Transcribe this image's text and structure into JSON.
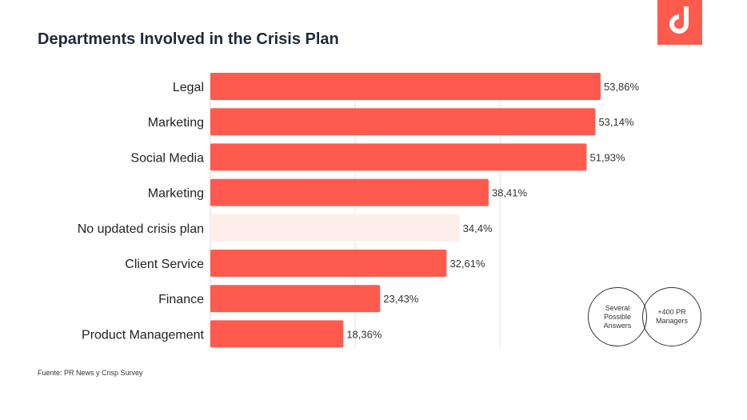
{
  "title": "Departments Involved in the Crisis Plan",
  "source": "Fuente: PR News y Crisp  Survey",
  "badges": {
    "left": "Several Possible Answers",
    "right": "+400 PR Managers"
  },
  "colors": {
    "bar": "#ff5a4e",
    "bar_highlight": "#fdeeea",
    "title": "#1f2a3a",
    "logo": "#ff5a4e"
  },
  "logo_icon": "brand-logo-icon",
  "chart_data": {
    "type": "bar",
    "orientation": "horizontal",
    "title": "Departments Involved in the Crisis Plan",
    "categories": [
      "Legal",
      "Marketing",
      "Social Media",
      "Marketing",
      "No updated crisis plan",
      "Client Service",
      "Finance",
      "Product Management"
    ],
    "values": [
      53.86,
      53.14,
      51.93,
      38.41,
      34.4,
      32.61,
      23.43,
      18.36
    ],
    "value_labels": [
      "53,86%",
      "53,14%",
      "51,93%",
      "38,41%",
      "34,4%",
      "32,61%",
      "23,43%",
      "18,36%"
    ],
    "highlighted": [
      false,
      false,
      false,
      false,
      true,
      false,
      false,
      false
    ],
    "xlim": [
      0,
      60
    ],
    "gridlines": [
      20,
      40
    ],
    "xlabel": "",
    "ylabel": ""
  }
}
